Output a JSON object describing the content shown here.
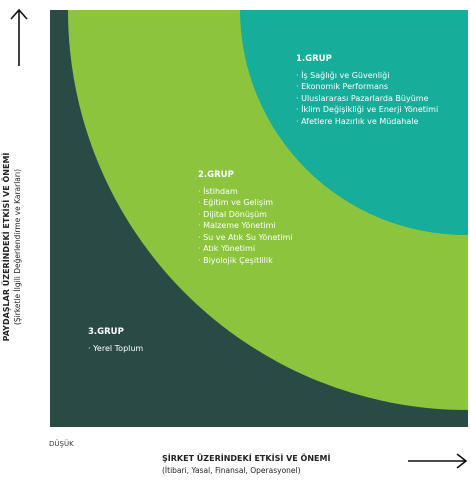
{
  "colors": {
    "outer": "#2a4b45",
    "middle": "#8cc43e",
    "inner": "#16ad9a",
    "text_on_ring": "#ffffff"
  },
  "axes": {
    "y_label": "PAYDAŞLAR ÜZERİNDEKİ ETKİSİ VE ÖNEMİ",
    "y_sublabel": "(Şirketle İlgili Değerlendirme ve Kararları)",
    "x_label": "ŞİRKET ÜZERİNDEKİ ETKİSİ VE ÖNEMİ",
    "x_sublabel": "(İtibari, Yasal, Finansal, Operasyonel)",
    "low_label": "DÜŞÜK"
  },
  "groups": [
    {
      "title": "1.GRUP",
      "items": [
        "İş Sağlığı ve Güvenliği",
        "Ekonomik Performans",
        "Uluslararası Pazarlarda Büyüme",
        "İklim Değişikliği ve Enerji Yönetimi",
        "Afetlere Hazırlık ve Müdahale"
      ]
    },
    {
      "title": "2.GRUP",
      "items": [
        "İstihdam",
        "Eğitim ve Gelişim",
        "Dijital Dönüşüm",
        "Malzeme Yönetimi",
        "Su ve Atık Su Yönetimi",
        "Atık Yönetimi",
        "Biyolojik Çeşitlilik"
      ]
    },
    {
      "title": "3.GRUP",
      "items": [
        "Yerel Toplum"
      ]
    }
  ]
}
